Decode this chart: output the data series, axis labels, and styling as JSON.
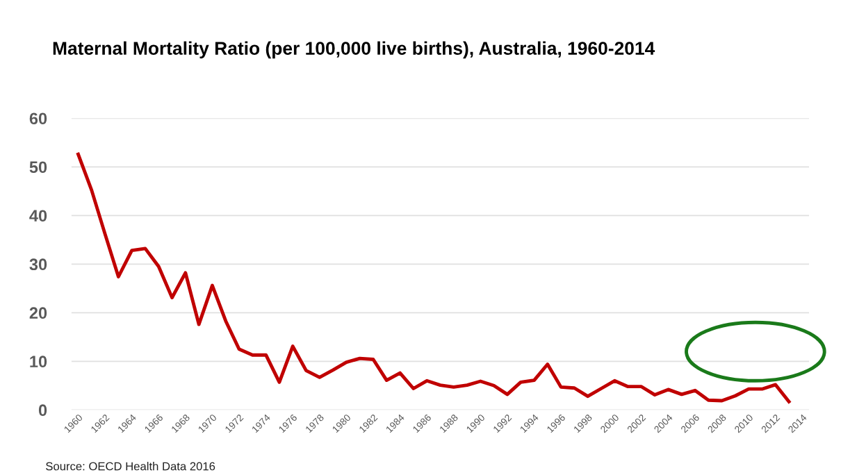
{
  "chart_data": {
    "type": "line",
    "title": "Maternal Mortality Ratio (per 100,000 live births), Australia, 1960-2014",
    "categories": [
      "1960",
      null,
      "1962",
      null,
      "1964",
      null,
      "1966",
      null,
      "1968",
      null,
      "1970",
      null,
      "1972",
      null,
      "1974",
      null,
      "1976",
      null,
      "1978",
      null,
      "1980",
      null,
      "1982",
      null,
      "1984",
      null,
      "1986",
      null,
      "1988",
      null,
      "1990",
      null,
      "1992",
      null,
      "1994",
      null,
      "1996",
      null,
      "1998",
      null,
      "2000",
      null,
      "2002",
      null,
      "2004",
      null,
      "2006",
      null,
      "2008",
      null,
      "2010",
      null,
      "2012",
      null,
      "2014"
    ],
    "series": [
      {
        "color": "#c00000",
        "values": [
          52.6,
          45.2,
          36.2,
          27.4,
          32.8,
          33.2,
          29.5,
          23.1,
          28.2,
          17.6,
          25.6,
          18.3,
          12.5,
          11.3,
          11.3,
          5.7,
          13.1,
          8.1,
          6.7,
          8.2,
          9.8,
          10.6,
          10.4,
          6.1,
          7.6,
          4.4,
          6.0,
          5.1,
          4.7,
          5.1,
          5.9,
          5.0,
          3.2,
          5.7,
          6.1,
          9.4,
          4.7,
          4.5,
          2.8,
          4.4,
          6.0,
          4.8,
          4.8,
          3.1,
          4.2,
          3.2,
          4.0,
          2.0,
          1.9,
          2.9,
          4.3,
          4.3,
          5.2,
          1.7,
          null
        ]
      }
    ],
    "ylim": [
      0,
      60
    ],
    "yticks": [
      0,
      10,
      20,
      30,
      40,
      50,
      60
    ],
    "grid": "y",
    "legend": false,
    "marker": "none",
    "line_style": "solid",
    "annotations": [
      "Source: OECD Health Data 2016"
    ]
  }
}
